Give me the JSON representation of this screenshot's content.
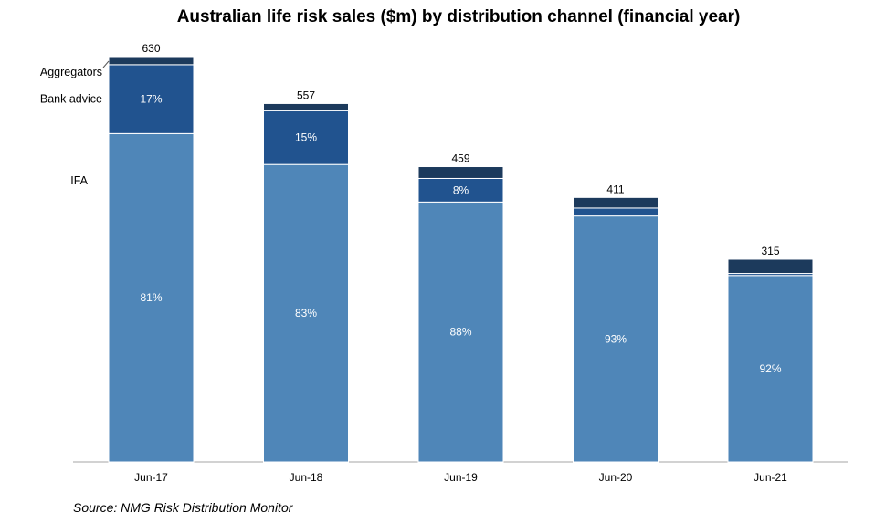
{
  "chart_data": {
    "type": "bar",
    "stacked": true,
    "title": "Australian life risk sales ($m) by distribution channel (financial year)",
    "categories": [
      "Jun-17",
      "Jun-18",
      "Jun-19",
      "Jun-20",
      "Jun-21"
    ],
    "totals": [
      630,
      557,
      459,
      411,
      315
    ],
    "series": [
      {
        "name": "IFA",
        "color": "#4f86b8",
        "share_pct": [
          81,
          83,
          88,
          93,
          92
        ],
        "labels": [
          "81%",
          "83%",
          "88%",
          "93%",
          "92%"
        ]
      },
      {
        "name": "Bank advice",
        "color": "#21538f",
        "share_pct": [
          17,
          15,
          8,
          3,
          1
        ],
        "labels": [
          "17%",
          "15%",
          "8%",
          "",
          ""
        ]
      },
      {
        "name": "Aggregators",
        "color": "#1c3a5c",
        "share_pct": [
          2,
          2,
          4,
          4,
          7
        ],
        "labels": [
          "",
          "",
          "",
          "",
          ""
        ]
      }
    ],
    "ylim": [
      0,
      630
    ],
    "grid": false,
    "legend_position": "left"
  },
  "source": "Source: NMG Risk Distribution Monitor"
}
